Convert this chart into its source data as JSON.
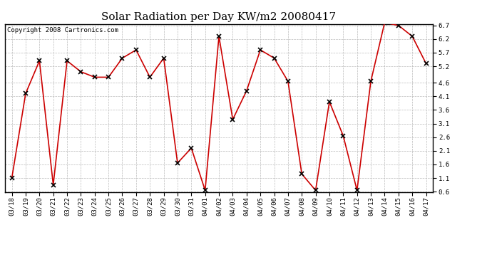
{
  "title": "Solar Radiation per Day KW/m2 20080417",
  "copyright": "Copyright 2008 Cartronics.com",
  "labels": [
    "03/18",
    "03/19",
    "03/20",
    "03/21",
    "03/22",
    "03/23",
    "03/24",
    "03/25",
    "03/26",
    "03/27",
    "03/28",
    "03/29",
    "03/30",
    "03/31",
    "04/01",
    "04/02",
    "04/03",
    "04/04",
    "04/05",
    "04/06",
    "04/07",
    "04/08",
    "04/09",
    "04/10",
    "04/11",
    "04/12",
    "04/13",
    "04/14",
    "04/15",
    "04/16",
    "04/17"
  ],
  "values": [
    1.1,
    4.2,
    5.4,
    0.85,
    5.4,
    5.0,
    4.8,
    4.8,
    5.5,
    5.8,
    4.8,
    5.5,
    1.65,
    2.2,
    0.65,
    6.3,
    3.25,
    4.3,
    5.8,
    5.5,
    4.65,
    1.25,
    0.65,
    3.9,
    2.65,
    0.65,
    4.65,
    6.8,
    6.7,
    6.3,
    5.3
  ],
  "line_color": "#cc0000",
  "marker": "x",
  "marker_color": "#000000",
  "bg_color": "#ffffff",
  "plot_bg_color": "#ffffff",
  "grid_color": "#bbbbbb",
  "ylim_min": 0.6,
  "ylim_max": 6.7,
  "yticks": [
    0.6,
    1.1,
    1.6,
    2.1,
    2.6,
    3.1,
    3.6,
    4.1,
    4.6,
    5.2,
    5.7,
    6.2,
    6.7
  ],
  "title_fontsize": 11,
  "tick_fontsize": 6.5,
  "copyright_fontsize": 6.5
}
